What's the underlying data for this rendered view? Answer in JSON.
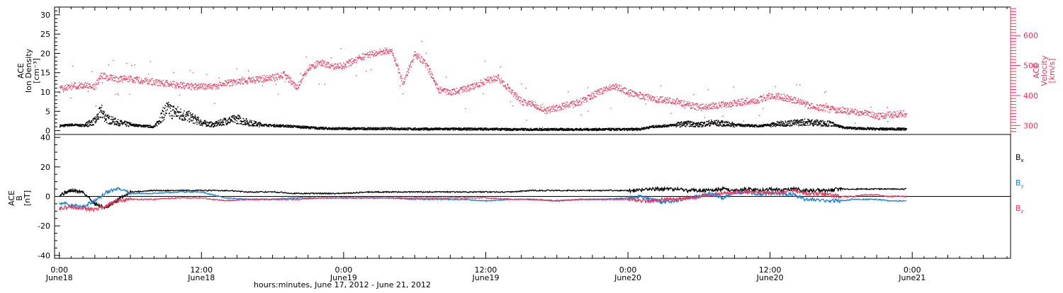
{
  "colors": {
    "density": "#000000",
    "velocity": "#e8375c",
    "bx": "#000000",
    "by": "#1a7fd8",
    "bz": "#e8375c",
    "axis": "#000000"
  },
  "top_panel": {
    "left_label_lines": [
      "ACE",
      "Ion Density",
      "[cm⁻³]"
    ],
    "right_label_lines": [
      "ACE",
      "Velocity",
      "[km/s]"
    ]
  },
  "bottom_panel": {
    "left_label_lines": [
      "ACE",
      "B",
      "[nT]"
    ],
    "legend": [
      {
        "base": "B",
        "sub": "x",
        "color": "#000000"
      },
      {
        "base": "B",
        "sub": "y",
        "color": "#1a7fd8"
      },
      {
        "base": "B",
        "sub": "z",
        "color": "#e8375c"
      }
    ]
  },
  "x_axis": {
    "title": "hours:minutes, June 17, 2012 - June 21, 2012",
    "ticks": [
      {
        "h": 0,
        "time": "0:00",
        "day": "June18"
      },
      {
        "h": 12,
        "time": "12:00",
        "day": "June18"
      },
      {
        "h": 24,
        "time": "0:00",
        "day": "June19"
      },
      {
        "h": 36,
        "time": "12:00",
        "day": "June19"
      },
      {
        "h": 48,
        "time": "0:00",
        "day": "June20"
      },
      {
        "h": 60,
        "time": "12:00",
        "day": "June20"
      },
      {
        "h": 72,
        "time": "0:00",
        "day": "June21"
      }
    ]
  },
  "chart_data": [
    {
      "type": "scatter",
      "panel": "top",
      "xlabel": "hours:minutes, June 17, 2012 - June 21, 2012",
      "xlim_hours_from_June18_0000": [
        -0.4,
        80.3
      ],
      "y_left": {
        "label": "ACE Ion Density [cm⁻³]",
        "ylim": [
          -1,
          32
        ],
        "ticks": [
          0,
          5,
          10,
          15,
          20,
          25,
          30
        ]
      },
      "y_right": {
        "label": "ACE Velocity [km/s]",
        "ylim": [
          270,
          695
        ],
        "ticks": [
          300,
          400,
          500,
          600
        ]
      },
      "series": [
        {
          "name": "Ion Density",
          "axis": "left",
          "color": "#000000",
          "x_hours": [
            0,
            1,
            2,
            3,
            3.5,
            4,
            5,
            6,
            7,
            8,
            9,
            10,
            11,
            12,
            13,
            14,
            15,
            16,
            17,
            18,
            19,
            20,
            21,
            22,
            23,
            24,
            26,
            28,
            30,
            32,
            34,
            36,
            38,
            40,
            42,
            44,
            46,
            48,
            49,
            50,
            51,
            52,
            53,
            54,
            55,
            56,
            57,
            58,
            59,
            60,
            61,
            62,
            63,
            64,
            65,
            66,
            67,
            68,
            69,
            70,
            71.5
          ],
          "values": [
            1.2,
            1.5,
            1.3,
            2.5,
            5,
            3,
            2,
            1.5,
            1.2,
            1.0,
            5.5,
            4.5,
            3.5,
            2,
            1.5,
            2.5,
            3,
            2,
            1.5,
            1.3,
            1.2,
            1.0,
            0.8,
            0.6,
            0.5,
            0.5,
            0.5,
            0.5,
            0.4,
            0.4,
            0.4,
            0.4,
            0.3,
            0.3,
            0.3,
            0.3,
            0.3,
            0.3,
            0.4,
            1.0,
            1.2,
            1.5,
            1.8,
            1.5,
            2.0,
            1.8,
            1.5,
            1.3,
            1.2,
            1.5,
            1.8,
            2.0,
            2.2,
            2.0,
            1.8,
            0.9,
            0.6,
            0.5,
            0.4,
            0.4,
            0.4
          ]
        },
        {
          "name": "Velocity",
          "axis": "right",
          "color": "#e8375c",
          "x_hours": [
            0,
            1,
            2,
            3,
            3.5,
            4,
            5,
            6,
            7,
            8,
            9,
            10,
            11,
            12,
            13,
            14,
            15,
            16,
            17,
            18,
            19,
            20,
            21,
            22,
            23,
            24,
            25,
            26,
            27,
            28,
            29,
            30,
            31,
            32,
            33,
            34,
            35,
            36,
            37,
            38,
            39,
            40,
            41,
            42,
            43,
            44,
            45,
            46,
            47,
            48,
            49,
            50,
            51,
            52,
            53,
            54,
            55,
            56,
            57,
            58,
            59,
            60,
            61,
            62,
            63,
            64,
            65,
            66,
            67,
            68,
            69,
            70,
            71,
            71.5
          ],
          "values": [
            420,
            430,
            435,
            430,
            470,
            460,
            455,
            455,
            450,
            445,
            440,
            435,
            430,
            430,
            430,
            440,
            445,
            450,
            455,
            460,
            470,
            425,
            490,
            510,
            495,
            500,
            520,
            535,
            545,
            550,
            440,
            540,
            500,
            420,
            410,
            420,
            430,
            450,
            460,
            420,
            380,
            370,
            350,
            360,
            370,
            380,
            400,
            420,
            430,
            410,
            400,
            390,
            385,
            380,
            370,
            360,
            365,
            370,
            375,
            380,
            385,
            400,
            395,
            385,
            370,
            360,
            355,
            350,
            345,
            340,
            330,
            335,
            340,
            338
          ]
        }
      ]
    },
    {
      "type": "line",
      "panel": "bottom",
      "xlabel": "hours:minutes, June 17, 2012 - June 21, 2012",
      "ylabel": "ACE B [nT]",
      "ylim": [
        -42,
        42
      ],
      "yticks": [
        -40,
        -20,
        0,
        20,
        40
      ],
      "x_hours": [
        0,
        1,
        2,
        3,
        4,
        5,
        6,
        8,
        10,
        12,
        14,
        16,
        18,
        20,
        22,
        24,
        26,
        28,
        30,
        32,
        34,
        36,
        38,
        40,
        42,
        44,
        46,
        48,
        49,
        50,
        51,
        52,
        53,
        54,
        55,
        56,
        57,
        58,
        59,
        60,
        61,
        62,
        63,
        64,
        65,
        66,
        67,
        68,
        69,
        70,
        71.5
      ],
      "series": [
        {
          "name": "Bx",
          "color": "#000000",
          "values": [
            1,
            4,
            3,
            -5,
            -8,
            -2,
            3,
            4,
            4,
            4,
            4,
            3,
            3,
            2,
            2,
            2,
            3,
            3,
            3,
            3,
            3,
            3,
            3,
            4,
            4,
            4,
            4,
            4,
            4,
            5,
            5,
            5,
            4,
            4,
            4,
            5,
            4,
            5,
            4,
            5,
            4,
            5,
            4,
            4,
            4,
            5,
            5,
            5,
            5,
            5,
            5
          ]
        },
        {
          "name": "By",
          "color": "#1a7fd8",
          "values": [
            -4,
            -6,
            -7,
            -3,
            3,
            5,
            2,
            2,
            3,
            3,
            -1,
            -2,
            -2,
            -1,
            -1,
            -1,
            -1,
            -1,
            -2,
            -2,
            -2,
            -3,
            -2,
            -2,
            -3,
            -2,
            -2,
            -1,
            0,
            -2,
            -4,
            -3,
            -1,
            0,
            2,
            -1,
            2,
            3,
            2,
            2,
            2,
            1,
            -2,
            -2,
            -3,
            -3,
            -2,
            -2,
            -2,
            -3,
            -3
          ]
        },
        {
          "name": "Bz",
          "color": "#e8375c",
          "values": [
            -8,
            -7,
            -8,
            -9,
            -6,
            -3,
            -2,
            -2,
            -1,
            -1,
            -3,
            -2,
            -2,
            -2,
            -1,
            -1,
            -1,
            -1,
            -1,
            -1,
            -1,
            -1,
            -2,
            -2,
            -3,
            -2,
            -2,
            -2,
            -3,
            -3,
            -2,
            -2,
            -1,
            0,
            1,
            2,
            3,
            3,
            3,
            2,
            3,
            4,
            2,
            2,
            1,
            0,
            0,
            1,
            1,
            0,
            0
          ]
        }
      ]
    }
  ]
}
